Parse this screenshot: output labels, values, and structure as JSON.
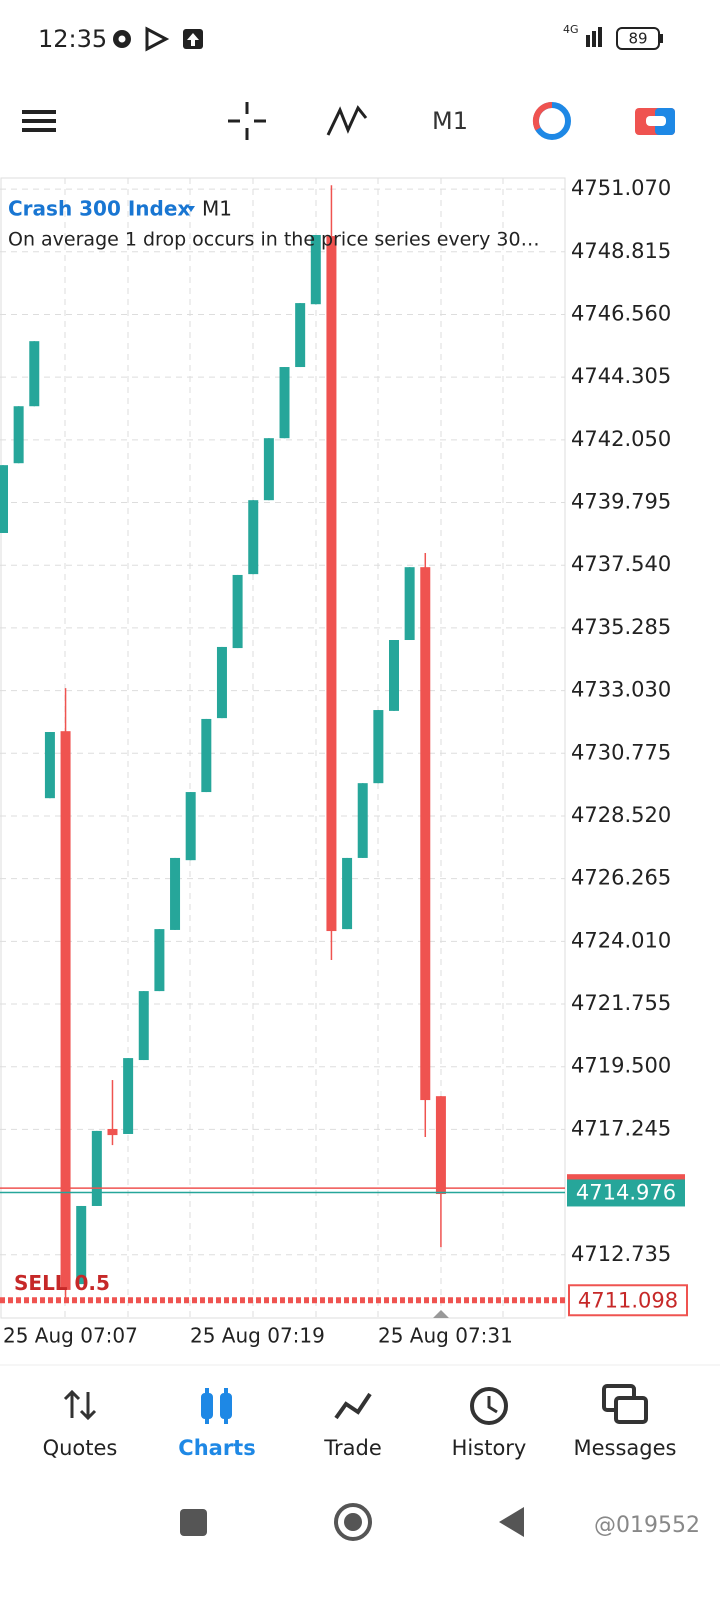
{
  "status_bar": {
    "time": "12:35",
    "network": "4G",
    "battery": "89"
  },
  "toolbar": {
    "timeframe": "M1"
  },
  "chart": {
    "type": "candlestick",
    "symbol": "Crash 300 Index",
    "timeframe": "M1",
    "description": "On average 1 drop occurs in the price series every 30…",
    "open": [
      4738.7,
      4741.21,
      4743.26,
      4729.16,
      4731.57,
      4711.68,
      4714.49,
      4717.26,
      4717.08,
      4719.74,
      4722.22,
      4724.42,
      4726.93,
      4729.38,
      4732.04,
      4734.56,
      4737.22,
      4739.88,
      4742.11,
      4744.67,
      4746.93,
      4749.38,
      4724.45,
      4727.01,
      4729.7,
      4732.3,
      4734.85,
      4737.47,
      4718.44
    ],
    "high": [
      4741.14,
      4743.26,
      4745.6,
      4731.54,
      4733.12,
      4714.49,
      4717.19,
      4719.02,
      4719.81,
      4722.22,
      4724.45,
      4727.01,
      4729.38,
      4732.01,
      4734.6,
      4737.19,
      4739.88,
      4742.11,
      4744.67,
      4746.97,
      4749.42,
      4751.21,
      4727.01,
      4729.7,
      4732.33,
      4734.85,
      4737.47,
      4737.98,
      4718.44
    ],
    "low": [
      4738.7,
      4741.21,
      4743.26,
      4729.16,
      4711.11,
      4711.68,
      4714.49,
      4716.68,
      4717.08,
      4719.74,
      4722.22,
      4724.42,
      4726.93,
      4729.38,
      4732.04,
      4734.56,
      4737.22,
      4739.88,
      4742.11,
      4744.67,
      4746.93,
      4723.34,
      4724.45,
      4727.01,
      4729.7,
      4732.3,
      4734.85,
      4716.97,
      4713.01
    ],
    "close": [
      4741.14,
      4743.26,
      4745.6,
      4731.54,
      4711.47,
      4714.49,
      4717.19,
      4717.04,
      4719.81,
      4722.22,
      4724.45,
      4727.01,
      4729.38,
      4732.01,
      4734.6,
      4737.19,
      4739.88,
      4742.11,
      4744.67,
      4746.97,
      4749.42,
      4724.38,
      4727.01,
      4729.7,
      4732.33,
      4734.85,
      4737.47,
      4718.3,
      4714.92
    ],
    "up_color": "#26a69a",
    "down_color": "#ef5350",
    "ylim": [
      4710.46,
      4751.47
    ],
    "yticks": [
      {
        "value": 4751.07,
        "label": "4751.070"
      },
      {
        "value": 4748.815,
        "label": "4748.815"
      },
      {
        "value": 4746.56,
        "label": "4746.560"
      },
      {
        "value": 4744.305,
        "label": "4744.305"
      },
      {
        "value": 4742.05,
        "label": "4742.050"
      },
      {
        "value": 4739.795,
        "label": "4739.795"
      },
      {
        "value": 4737.54,
        "label": "4737.540"
      },
      {
        "value": 4735.285,
        "label": "4735.285"
      },
      {
        "value": 4733.03,
        "label": "4733.030"
      },
      {
        "value": 4730.775,
        "label": "4730.775"
      },
      {
        "value": 4728.52,
        "label": "4728.520"
      },
      {
        "value": 4726.265,
        "label": "4726.265"
      },
      {
        "value": 4724.01,
        "label": "4724.010"
      },
      {
        "value": 4721.755,
        "label": "4721.755"
      },
      {
        "value": 4719.5,
        "label": "4719.500"
      },
      {
        "value": 4717.245,
        "label": "4717.245"
      },
      {
        "value": 4712.735,
        "label": "4712.735"
      }
    ],
    "xlabels": [
      "25 Aug 07:07",
      "25 Aug 07:19",
      "25 Aug 07:31"
    ],
    "grid": true,
    "ask_line": 4715.13,
    "bid_line": {
      "value": 4714.976,
      "label": "4714.976"
    },
    "sell_line": {
      "value": 4711.098,
      "label": "4711.098",
      "order": "SELL 0.5"
    }
  },
  "nav": [
    "Quotes",
    "Charts",
    "Trade",
    "History",
    "Messages"
  ],
  "watermark": "@019552"
}
